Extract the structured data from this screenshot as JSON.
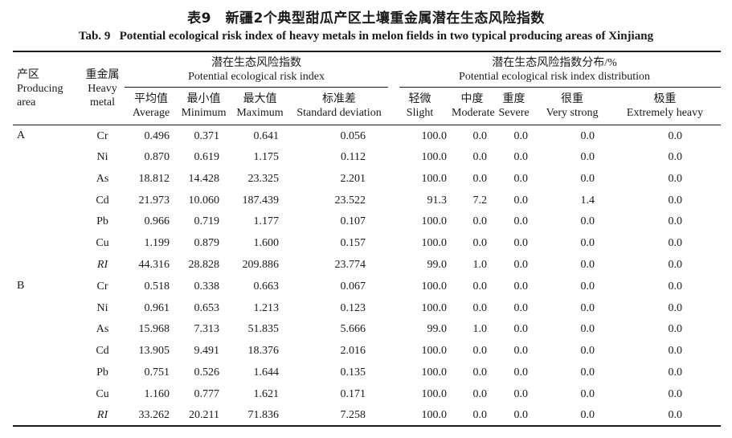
{
  "page": {
    "title_zh": "表9　新疆2个典型甜瓜产区土壤重金属潜在生态风险指数",
    "title_en": "Tab. 9   Potential ecological risk index of heavy metals in melon fields in two typical producing areas of Xinjiang"
  },
  "table": {
    "headers": {
      "producing_area": {
        "zh": "产区",
        "en1": "Producing",
        "en2": "area"
      },
      "heavy_metal": {
        "zh": "重金属",
        "en1": "Heavy",
        "en2": "metal"
      },
      "group_index": {
        "zh": "潜在生态风险指数",
        "en": "Potential ecological risk index"
      },
      "group_distribution": {
        "zh": "潜在生态风险指数分布/%",
        "en": "Potential ecological risk index distribution"
      },
      "sub": [
        {
          "zh": "平均值",
          "en": "Average"
        },
        {
          "zh": "最小值",
          "en": "Minimum"
        },
        {
          "zh": "最大值",
          "en": "Maximum"
        },
        {
          "zh": "标准差",
          "en": "Standard deviation"
        },
        {
          "zh": "轻微",
          "en": "Slight"
        },
        {
          "zh": "中度",
          "en": "Moderate"
        },
        {
          "zh": "重度",
          "en": "Severe"
        },
        {
          "zh": "很重",
          "en": "Very strong"
        },
        {
          "zh": "极重",
          "en": "Extremely heavy"
        }
      ]
    },
    "groups": [
      {
        "area": "A",
        "rows": [
          {
            "metal": "Cr",
            "italic": false,
            "values": [
              "0.496",
              "0.371",
              "0.641",
              "0.056",
              "100.0",
              "0.0",
              "0.0",
              "0.0",
              "0.0"
            ]
          },
          {
            "metal": "Ni",
            "italic": false,
            "values": [
              "0.870",
              "0.619",
              "1.175",
              "0.112",
              "100.0",
              "0.0",
              "0.0",
              "0.0",
              "0.0"
            ]
          },
          {
            "metal": "As",
            "italic": false,
            "values": [
              "18.812",
              "14.428",
              "23.325",
              "2.201",
              "100.0",
              "0.0",
              "0.0",
              "0.0",
              "0.0"
            ]
          },
          {
            "metal": "Cd",
            "italic": false,
            "values": [
              "21.973",
              "10.060",
              "187.439",
              "23.522",
              "91.3",
              "7.2",
              "0.0",
              "1.4",
              "0.0"
            ]
          },
          {
            "metal": "Pb",
            "italic": false,
            "values": [
              "0.966",
              "0.719",
              "1.177",
              "0.107",
              "100.0",
              "0.0",
              "0.0",
              "0.0",
              "0.0"
            ]
          },
          {
            "metal": "Cu",
            "italic": false,
            "values": [
              "1.199",
              "0.879",
              "1.600",
              "0.157",
              "100.0",
              "0.0",
              "0.0",
              "0.0",
              "0.0"
            ]
          },
          {
            "metal": "RI",
            "italic": true,
            "values": [
              "44.316",
              "28.828",
              "209.886",
              "23.774",
              "99.0",
              "1.0",
              "0.0",
              "0.0",
              "0.0"
            ]
          }
        ]
      },
      {
        "area": "B",
        "rows": [
          {
            "metal": "Cr",
            "italic": false,
            "values": [
              "0.518",
              "0.338",
              "0.663",
              "0.067",
              "100.0",
              "0.0",
              "0.0",
              "0.0",
              "0.0"
            ]
          },
          {
            "metal": "Ni",
            "italic": false,
            "values": [
              "0.961",
              "0.653",
              "1.213",
              "0.123",
              "100.0",
              "0.0",
              "0.0",
              "0.0",
              "0.0"
            ]
          },
          {
            "metal": "As",
            "italic": false,
            "values": [
              "15.968",
              "7.313",
              "51.835",
              "5.666",
              "99.0",
              "1.0",
              "0.0",
              "0.0",
              "0.0"
            ]
          },
          {
            "metal": "Cd",
            "italic": false,
            "values": [
              "13.905",
              "9.491",
              "18.376",
              "2.016",
              "100.0",
              "0.0",
              "0.0",
              "0.0",
              "0.0"
            ]
          },
          {
            "metal": "Pb",
            "italic": false,
            "values": [
              "0.751",
              "0.526",
              "1.644",
              "0.135",
              "100.0",
              "0.0",
              "0.0",
              "0.0",
              "0.0"
            ]
          },
          {
            "metal": "Cu",
            "italic": false,
            "values": [
              "1.160",
              "0.777",
              "1.621",
              "0.171",
              "100.0",
              "0.0",
              "0.0",
              "0.0",
              "0.0"
            ]
          },
          {
            "metal": "RI",
            "italic": true,
            "values": [
              "33.262",
              "20.211",
              "71.836",
              "7.258",
              "100.0",
              "0.0",
              "0.0",
              "0.0",
              "0.0"
            ]
          }
        ]
      }
    ]
  }
}
